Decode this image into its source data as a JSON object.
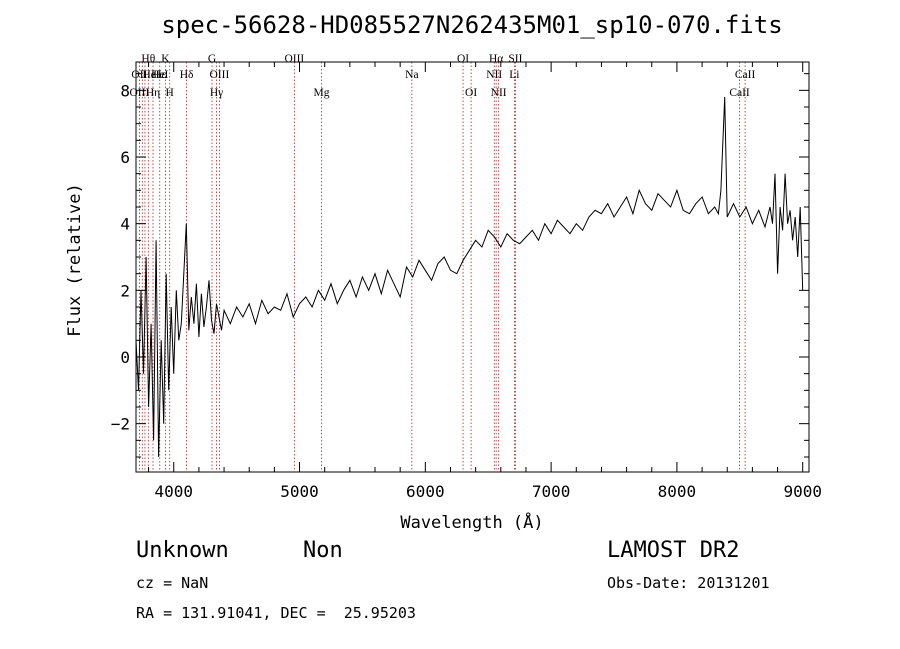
{
  "chart_data": {
    "type": "line",
    "title": "spec-56628-HD085527N262435M01_sp10-070.fits",
    "xlabel": "Wavelength (Å)",
    "ylabel": "Flux (relative)",
    "xlim": [
      3700,
      9050
    ],
    "ylim": [
      -3.45,
      8.85
    ],
    "xticks": [
      4000,
      5000,
      6000,
      7000,
      8000,
      9000
    ],
    "yticks": [
      -2,
      0,
      2,
      4,
      6,
      8
    ],
    "grid": false,
    "series": [
      {
        "color": "#000000",
        "x": [
          3700,
          3720,
          3740,
          3760,
          3780,
          3800,
          3820,
          3840,
          3860,
          3880,
          3900,
          3920,
          3940,
          3960,
          3980,
          4000,
          4020,
          4040,
          4060,
          4080,
          4100,
          4120,
          4140,
          4160,
          4180,
          4200,
          4220,
          4240,
          4260,
          4280,
          4300,
          4320,
          4340,
          4360,
          4380,
          4400,
          4450,
          4500,
          4550,
          4600,
          4650,
          4700,
          4750,
          4800,
          4850,
          4900,
          4950,
          5000,
          5050,
          5100,
          5150,
          5200,
          5250,
          5300,
          5350,
          5400,
          5450,
          5500,
          5550,
          5600,
          5650,
          5700,
          5750,
          5800,
          5850,
          5900,
          5950,
          6000,
          6050,
          6100,
          6150,
          6200,
          6250,
          6300,
          6350,
          6400,
          6450,
          6500,
          6550,
          6600,
          6650,
          6700,
          6750,
          6800,
          6850,
          6900,
          6950,
          7000,
          7050,
          7100,
          7150,
          7200,
          7250,
          7300,
          7350,
          7400,
          7450,
          7500,
          7550,
          7600,
          7650,
          7700,
          7750,
          7800,
          7850,
          7900,
          7950,
          8000,
          8050,
          8100,
          8150,
          8200,
          8250,
          8300,
          8330,
          8350,
          8380,
          8400,
          8450,
          8500,
          8550,
          8600,
          8650,
          8700,
          8720,
          8740,
          8760,
          8780,
          8800,
          8820,
          8840,
          8860,
          8880,
          8900,
          8920,
          8940,
          8960,
          8980,
          9000
        ],
        "y": [
          0.5,
          -1.0,
          2.0,
          -0.5,
          3.0,
          -1.5,
          1.0,
          -2.5,
          3.5,
          -3.0,
          0.5,
          -2.0,
          2.5,
          -1.0,
          1.5,
          -0.5,
          2.0,
          0.5,
          1.0,
          2.5,
          4.0,
          0.8,
          1.8,
          1.0,
          2.2,
          0.6,
          1.9,
          0.9,
          1.5,
          2.3,
          1.1,
          0.7,
          1.6,
          1.2,
          0.8,
          1.4,
          1.0,
          1.5,
          1.2,
          1.6,
          1.0,
          1.7,
          1.3,
          1.5,
          1.4,
          1.9,
          1.2,
          1.6,
          1.8,
          1.5,
          2.0,
          1.7,
          2.2,
          1.6,
          2.0,
          2.3,
          1.8,
          2.4,
          2.0,
          2.5,
          1.9,
          2.6,
          2.2,
          1.8,
          2.7,
          2.4,
          2.9,
          2.6,
          2.3,
          2.8,
          3.0,
          2.6,
          2.5,
          2.9,
          3.2,
          3.5,
          3.3,
          3.8,
          3.6,
          3.3,
          3.7,
          3.5,
          3.4,
          3.6,
          3.8,
          3.5,
          4.0,
          3.7,
          4.1,
          3.9,
          3.7,
          4.0,
          3.8,
          4.2,
          4.4,
          4.3,
          4.6,
          4.2,
          4.5,
          4.8,
          4.3,
          5.0,
          4.6,
          4.4,
          4.9,
          4.7,
          4.5,
          5.0,
          4.4,
          4.3,
          4.6,
          4.8,
          4.3,
          4.5,
          4.3,
          5.0,
          7.8,
          4.2,
          4.6,
          4.2,
          4.5,
          4.0,
          4.4,
          3.9,
          4.2,
          4.5,
          4.0,
          5.5,
          2.5,
          4.5,
          3.8,
          5.5,
          4.0,
          4.4,
          3.5,
          4.2,
          3.0,
          4.5,
          2.0
        ]
      }
    ],
    "line_markers": [
      {
        "label": "OII",
        "x": 3727,
        "row": 2
      },
      {
        "label": "OIII",
        "x": 3727,
        "row": 3
      },
      {
        "label": "Hθ",
        "x": 3798,
        "row": 1
      },
      {
        "label": "HeI",
        "x": 3820,
        "row": 2
      },
      {
        "label": "Hη",
        "x": 3835,
        "row": 3
      },
      {
        "label": "Hε",
        "x": 3889,
        "row": 2
      },
      {
        "label": "K",
        "x": 3934,
        "row": 1
      },
      {
        "label": "HeI",
        "x": 3889,
        "row": 2
      },
      {
        "label": "H",
        "x": 3968,
        "row": 3
      },
      {
        "label": "Hδ",
        "x": 4102,
        "row": 2
      },
      {
        "label": "G",
        "x": 4304,
        "row": 1
      },
      {
        "label": "OIII",
        "x": 4363,
        "row": 2
      },
      {
        "label": "Hγ",
        "x": 4340,
        "row": 3
      },
      {
        "label": "OIII",
        "x": 4959,
        "row": 1
      },
      {
        "label": "Mg",
        "x": 5175,
        "row": 3
      },
      {
        "label": "Na",
        "x": 5893,
        "row": 2
      },
      {
        "label": "OI",
        "x": 6300,
        "row": 1
      },
      {
        "label": "OI",
        "x": 6364,
        "row": 3
      },
      {
        "label": "Hα",
        "x": 6563,
        "row": 1
      },
      {
        "label": "NII",
        "x": 6548,
        "row": 2
      },
      {
        "label": "NII",
        "x": 6583,
        "row": 3
      },
      {
        "label": "SII",
        "x": 6716,
        "row": 1
      },
      {
        "label": "Li",
        "x": 6708,
        "row": 2
      },
      {
        "label": "CaII",
        "x": 8542,
        "row": 2
      },
      {
        "label": "CaII",
        "x": 8498,
        "row": 3
      }
    ],
    "marker_lines_x": [
      3727,
      3750,
      3771,
      3798,
      3835,
      3889,
      3934,
      3968,
      4102,
      4304,
      4340,
      4363,
      4959,
      5175,
      5893,
      6300,
      6364,
      6548,
      6563,
      6583,
      6708,
      6716,
      8498,
      8542
    ]
  },
  "info": {
    "object_class": "Unknown",
    "subclass": "Non",
    "survey": "LAMOST DR2",
    "cz": "cz = NaN",
    "obs_date": "Obs-Date: 20131201",
    "coords": "RA = 131.91041, DEC =  25.95203"
  },
  "colors": {
    "marker_line": "#b22222",
    "spectrum": "#000000"
  }
}
